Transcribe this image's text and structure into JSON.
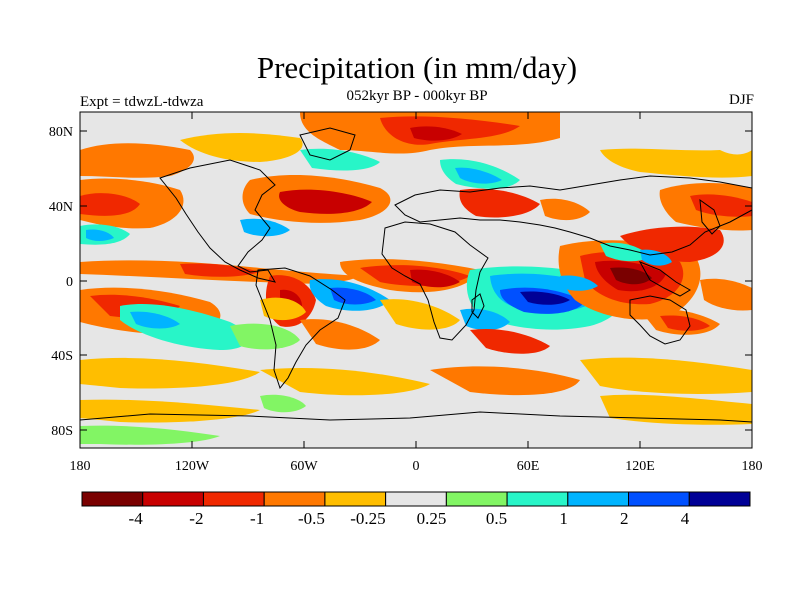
{
  "title": "Precipitation (in mm/day)",
  "subtitle": "052kyr BP - 000kyr BP",
  "left_label": "Expt = tdwzL-tdwza",
  "season": "DJF",
  "lat_ticks": [
    "80N",
    "40N",
    "0",
    "40S",
    "80S"
  ],
  "lon_ticks": [
    "180",
    "120W",
    "60W",
    "0",
    "60E",
    "120E",
    "180"
  ],
  "colorbar": {
    "colors": [
      "#7a0000",
      "#c80000",
      "#f02800",
      "#ff7800",
      "#ffbe00",
      "#e6e6e6",
      "#82f564",
      "#28f5c8",
      "#00b4ff",
      "#0050ff",
      "#000096"
    ],
    "labels": [
      "-4",
      "-2",
      "-1",
      "-0.5",
      "-0.25",
      "0.25",
      "0.5",
      "1",
      "2",
      "4"
    ]
  }
}
